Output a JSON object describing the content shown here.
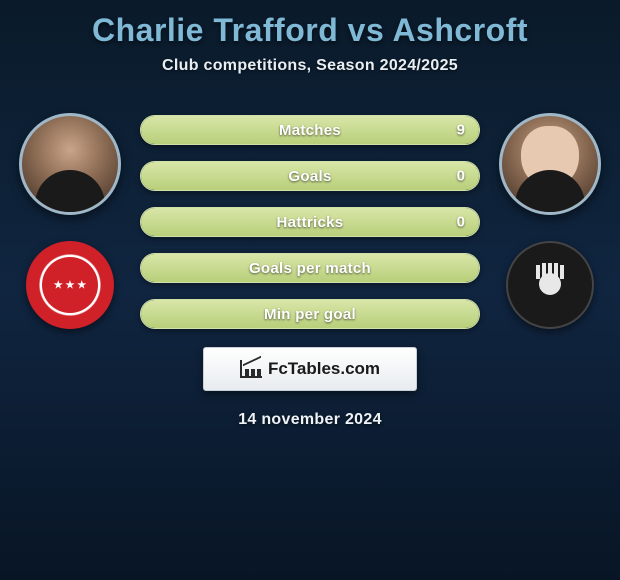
{
  "title": "Charlie Trafford vs Ashcroft",
  "subtitle": "Club competitions, Season 2024/2025",
  "date": "14 november 2024",
  "brand": "FcTables.com",
  "colors": {
    "title": "#7fb9d6",
    "bar_border": "#cfe0a8",
    "bar_fill_top": "#d8e6a8",
    "bar_fill_bottom": "#b8cf7a",
    "bg_top": "#0a1a2a",
    "bg_bottom": "#081525",
    "badge_left_primary": "#d02028",
    "badge_right_primary": "#1a1a1a"
  },
  "left": {
    "player": "Charlie Trafford",
    "club_badge": "hamilton-academical"
  },
  "right": {
    "player": "Ashcroft",
    "club_badge": "partick-thistle"
  },
  "stats": [
    {
      "label": "Matches",
      "value": "9",
      "fill_pct": 100
    },
    {
      "label": "Goals",
      "value": "0",
      "fill_pct": 100
    },
    {
      "label": "Hattricks",
      "value": "0",
      "fill_pct": 100
    },
    {
      "label": "Goals per match",
      "value": "",
      "fill_pct": 100
    },
    {
      "label": "Min per goal",
      "value": "",
      "fill_pct": 100
    }
  ]
}
